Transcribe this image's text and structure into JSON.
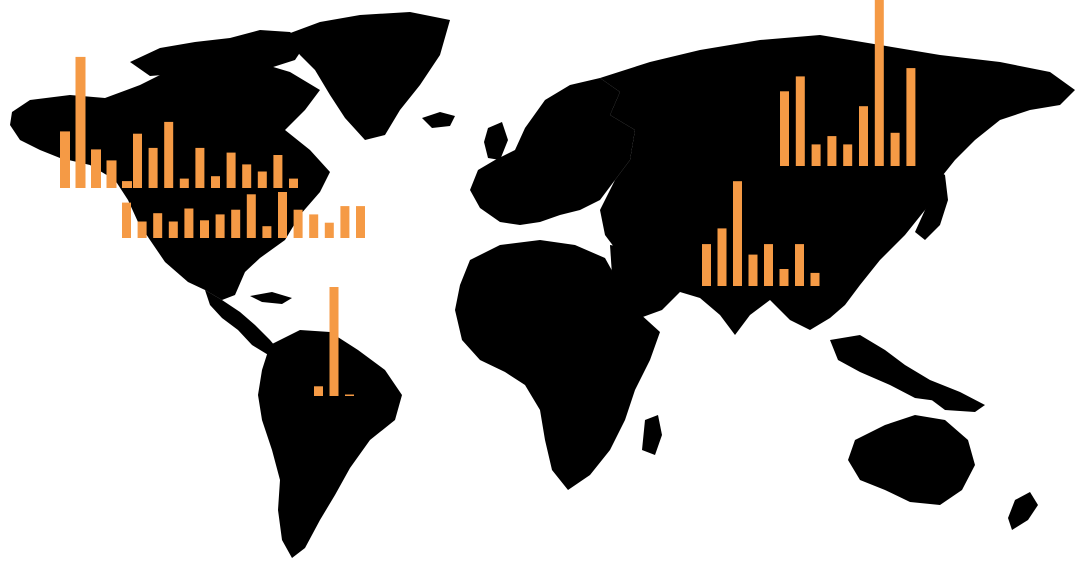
{
  "map": {
    "background_color": "#ffffff",
    "land_color": "#000000",
    "bar_color": "#f59a45",
    "projection": "world-equirectangular",
    "legend": null,
    "title": ""
  },
  "chart_data": [
    {
      "type": "bar",
      "region": "alaska",
      "values": [
        0.41,
        0.95,
        0.28,
        0.2,
        0.05
      ]
    },
    {
      "type": "bar",
      "region": "canada",
      "values": [
        0.23,
        0.17,
        0.28,
        0.04,
        0.17,
        0.05,
        0.15,
        0.1,
        0.07,
        0.14,
        0.04
      ]
    },
    {
      "type": "bar",
      "region": "united-states",
      "values": [
        0.3,
        0.14,
        0.21,
        0.14,
        0.25,
        0.15,
        0.2,
        0.24,
        0.37,
        0.1,
        0.39,
        0.24,
        0.2,
        0.13,
        0.27,
        0.27
      ]
    },
    {
      "type": "bar",
      "region": "south-america",
      "values": [
        0.07,
        0.79,
        0.01
      ]
    },
    {
      "type": "bar",
      "region": "south-asia",
      "values": [
        0.32,
        0.44,
        0.8,
        0.24,
        0.32,
        0.13,
        0.32,
        0.1
      ]
    },
    {
      "type": "bar",
      "region": "siberia",
      "values": [
        0.45,
        0.54,
        0.13,
        0.18,
        0.13,
        0.36,
        1.0,
        0.2,
        0.59
      ]
    }
  ]
}
